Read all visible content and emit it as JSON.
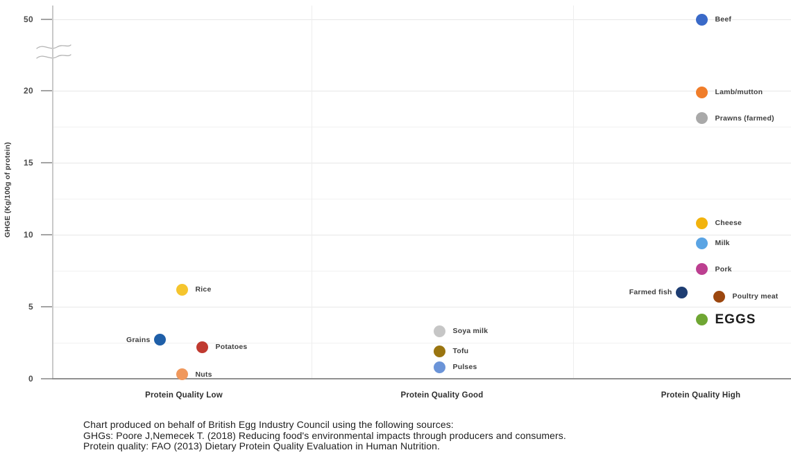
{
  "chart_data": {
    "type": "scatter",
    "title": "",
    "ylabel": "GHGE (Kg/100g of protein)",
    "xlabel": "",
    "ylim": [
      0,
      50
    ],
    "axis_break": {
      "between": [
        20,
        50
      ]
    },
    "yticks_major": [
      0,
      5,
      10,
      15,
      20,
      50
    ],
    "yticks_minor": [
      2.5,
      7.5,
      12.5,
      17.5
    ],
    "grid": "horizontal",
    "legend_position": "none",
    "categories": [
      {
        "key": "low",
        "label": "Protein Quality Low"
      },
      {
        "key": "good",
        "label": "Protein Quality Good"
      },
      {
        "key": "high",
        "label": "Protein Quality High"
      }
    ],
    "points": [
      {
        "category": "low",
        "name": "Rice",
        "value": 6.2,
        "color": "#f5c52e",
        "label_side": "right",
        "dx": 0,
        "emphasis": false
      },
      {
        "category": "low",
        "name": "Grains",
        "value": 2.7,
        "color": "#1f5fa8",
        "label_side": "left",
        "dx": -32,
        "emphasis": false
      },
      {
        "category": "low",
        "name": "Potatoes",
        "value": 2.2,
        "color": "#c03a30",
        "label_side": "right",
        "dx": 29,
        "emphasis": false
      },
      {
        "category": "low",
        "name": "Nuts",
        "value": 0.3,
        "color": "#f0985c",
        "label_side": "right",
        "dx": 0,
        "emphasis": false
      },
      {
        "category": "good",
        "name": "Soya milk",
        "value": 3.3,
        "color": "#c6c6c6",
        "label_side": "right",
        "dx": 0,
        "emphasis": false
      },
      {
        "category": "good",
        "name": "Tofu",
        "value": 1.9,
        "color": "#9a7510",
        "label_side": "right",
        "dx": 0,
        "emphasis": false
      },
      {
        "category": "good",
        "name": "Pulses",
        "value": 0.8,
        "color": "#6b94d8",
        "label_side": "right",
        "dx": 0,
        "emphasis": false
      },
      {
        "category": "high",
        "name": "Beef",
        "value": 49.9,
        "color": "#3a6ac8",
        "label_side": "right",
        "dx": 0,
        "emphasis": false
      },
      {
        "category": "high",
        "name": "Lamb/mutton",
        "value": 19.9,
        "color": "#f07d2a",
        "label_side": "right",
        "dx": 0,
        "emphasis": false
      },
      {
        "category": "high",
        "name": "Prawns (farmed)",
        "value": 18.1,
        "color": "#a9a9a9",
        "label_side": "right",
        "dx": 0,
        "emphasis": false
      },
      {
        "category": "high",
        "name": "Cheese",
        "value": 10.8,
        "color": "#f2b30d",
        "label_side": "right",
        "dx": 0,
        "emphasis": false
      },
      {
        "category": "high",
        "name": "Milk",
        "value": 9.4,
        "color": "#5aa4e4",
        "label_side": "right",
        "dx": 0,
        "emphasis": false
      },
      {
        "category": "high",
        "name": "Pork",
        "value": 7.6,
        "color": "#bc3f90",
        "label_side": "right",
        "dx": 0,
        "emphasis": false
      },
      {
        "category": "high",
        "name": "Farmed fish",
        "value": 6.0,
        "color": "#1e3d72",
        "label_side": "left",
        "dx": -29,
        "emphasis": false
      },
      {
        "category": "high",
        "name": "Poultry meat",
        "value": 5.7,
        "color": "#9c470f",
        "label_side": "right",
        "dx": 25,
        "emphasis": false
      },
      {
        "category": "high",
        "name": "EGGS",
        "value": 4.1,
        "color": "#6fa633",
        "label_side": "right",
        "dx": 0,
        "emphasis": true
      }
    ]
  },
  "footer": {
    "lines": [
      "Chart produced on behalf of British Egg Industry Council using the following sources:",
      "GHGs: Poore J,Nemecek T. (2018) Reducing food's environmental impacts through producers and consumers.",
      "Protein quality: FAO (2013) Dietary Protein Quality Evaluation in Human Nutrition."
    ]
  }
}
